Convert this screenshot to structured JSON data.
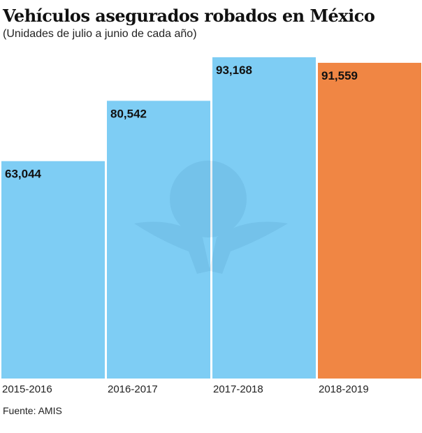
{
  "chart_data": {
    "type": "bar",
    "title": "Vehículos asegurados robados en México",
    "subtitle": "(Unidades de julio a junio de cada año)",
    "categories": [
      "2015-2016",
      "2016-2017",
      "2017-2018",
      "2018-2019"
    ],
    "values": [
      63044,
      80542,
      93168,
      91559
    ],
    "value_labels": [
      "63,044",
      "80,542",
      "93,168",
      "91,559"
    ],
    "colors": [
      "#7ecdf4",
      "#7ecdf4",
      "#7ecdf4",
      "#f08644"
    ],
    "xlabel": "",
    "ylabel": "",
    "ylim": [
      0,
      93168
    ],
    "grid": false,
    "source": "Fuente: AMIS"
  }
}
